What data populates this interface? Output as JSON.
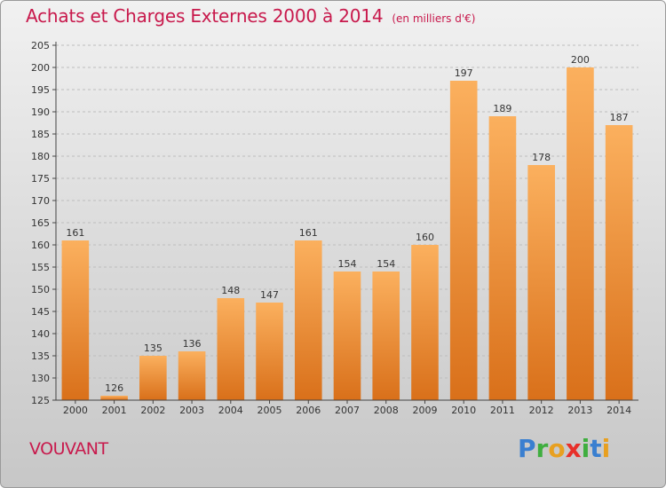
{
  "title": "Achats et Charges Externes 2000 à 2014",
  "subtitle": "(en milliers d'€)",
  "commune": "VOUVANT",
  "logo": {
    "text": "Proxiti",
    "letters": [
      "P",
      "r",
      "o",
      "x",
      "i",
      "t",
      "i"
    ],
    "colors": [
      "#3a7fd0",
      "#3fae3f",
      "#e8a020",
      "#e8302a",
      "#3fae3f",
      "#3a7fd0",
      "#e8a020"
    ]
  },
  "colors": {
    "bar_top": "#fbb05e",
    "bar_bottom": "#d9701a",
    "title": "#c8194c",
    "grid": "#bdbdbd",
    "axis": "#444444"
  },
  "chart_data": {
    "type": "bar",
    "title": "Achats et Charges Externes 2000 à 2014",
    "subtitle": "(en milliers d'€)",
    "categories": [
      "2000",
      "2001",
      "2002",
      "2003",
      "2004",
      "2005",
      "2006",
      "2007",
      "2008",
      "2009",
      "2010",
      "2011",
      "2012",
      "2013",
      "2014"
    ],
    "values": [
      161,
      126,
      135,
      136,
      148,
      147,
      161,
      154,
      154,
      160,
      197,
      189,
      178,
      200,
      187
    ],
    "ylim": [
      125,
      205
    ],
    "yticks": [
      125,
      130,
      135,
      140,
      145,
      150,
      155,
      160,
      165,
      170,
      175,
      180,
      185,
      190,
      195,
      200,
      205
    ],
    "grid": true,
    "data_labels": true
  }
}
